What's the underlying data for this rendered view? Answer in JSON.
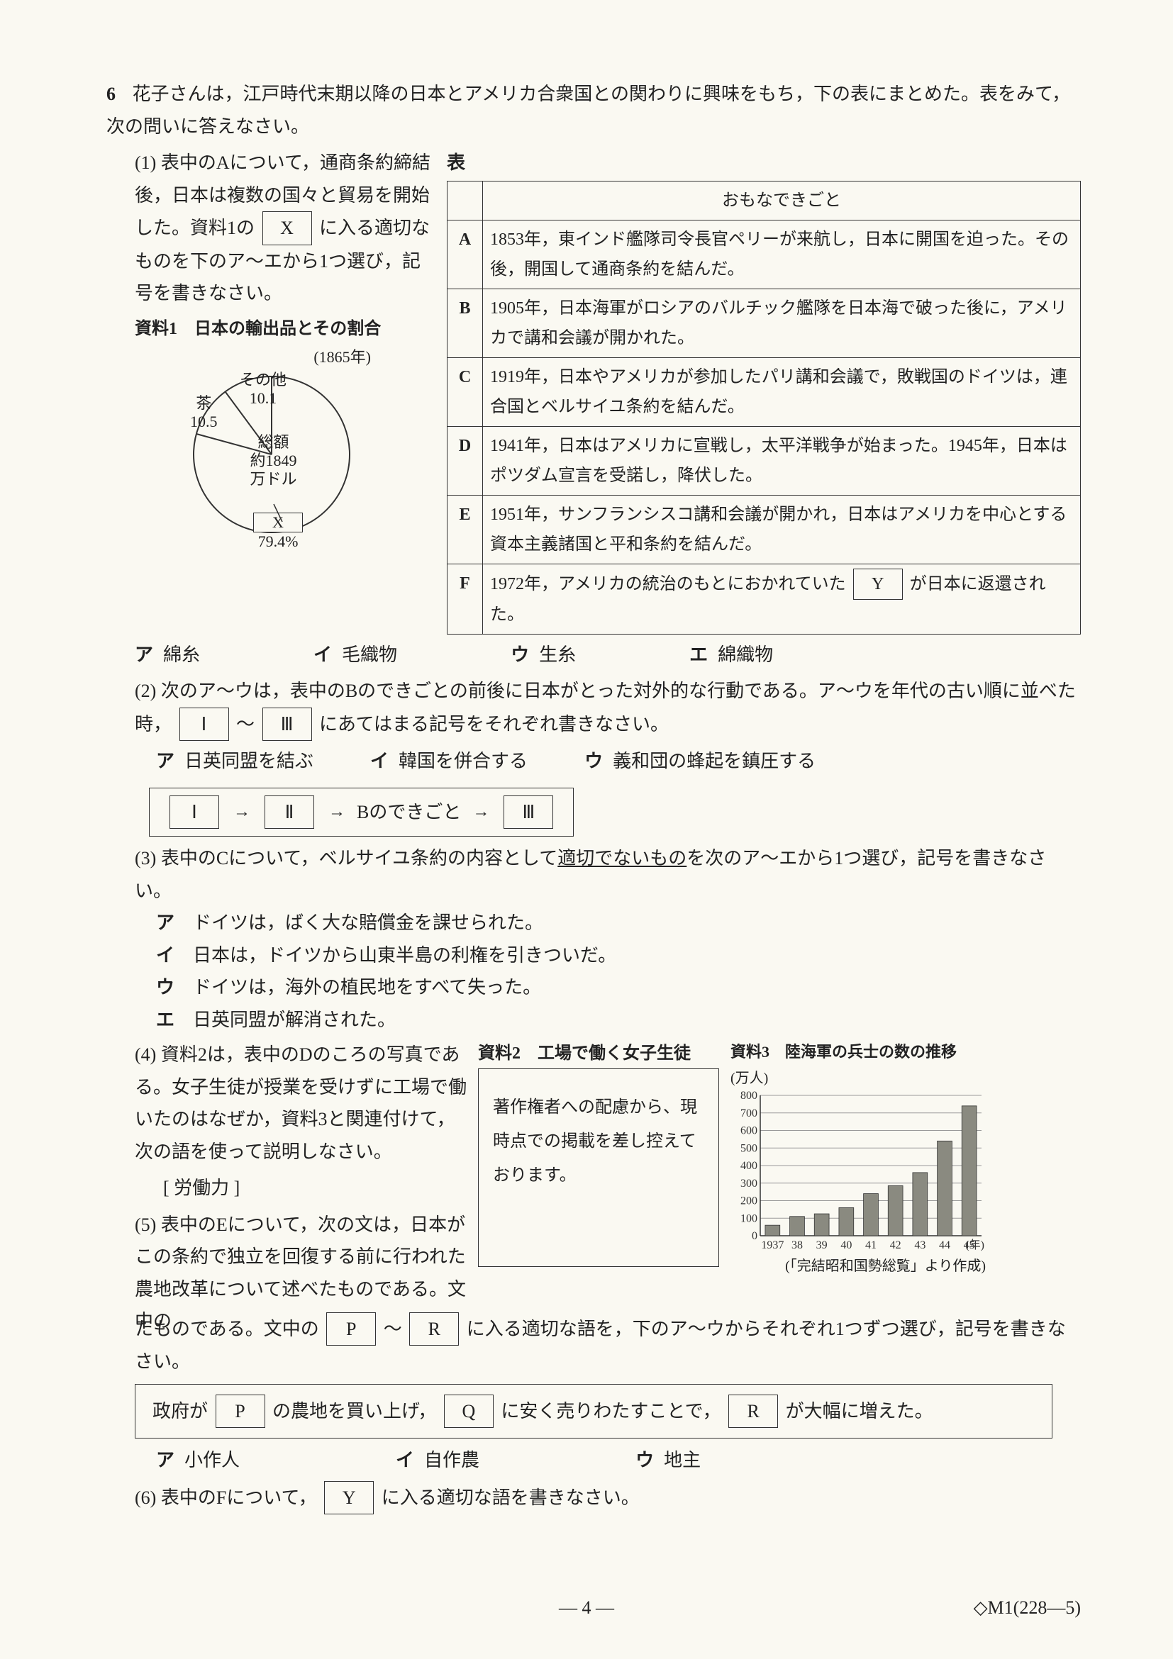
{
  "main": {
    "qnum": "6",
    "intro": "花子さんは，江戸時代末期以降の日本とアメリカ合衆国との関わりに興味をもち，下の表にまとめた。表をみて，次の問いに答えなさい。",
    "q1_label": "(1)",
    "q1_text1": "表中のAについて，通商条約締結後，日本は複数の国々と貿易を開始した。資料1の",
    "q1_blank": "X",
    "q1_text2": "に入る適切なものを下のア～エから1つ選び，記号を書きなさい。",
    "resource1_title": "資料1　日本の輸出品とその割合",
    "pie": {
      "type": "pie",
      "year": "(1865年)",
      "center_label": "総額\n約1849\n万ドル",
      "slices": [
        {
          "label": "その他",
          "value": 10.1,
          "color": "#faf9f2"
        },
        {
          "label": "茶",
          "value": 10.5,
          "color": "#faf9f2"
        },
        {
          "label": "X",
          "value": 79.4,
          "color": "#faf9f2",
          "is_blank": true
        }
      ],
      "x_pct_label": "79.4%",
      "tea_pct": "10.5",
      "other_pct": "10.1",
      "stroke": "#333",
      "background": "#faf9f2"
    },
    "table_title": "表",
    "table_header": "おもなできごと",
    "table_rows": [
      {
        "k": "A",
        "t": "1853年，東インド艦隊司令長官ペリーが来航し，日本に開国を迫った。その後，開国して通商条約を結んだ。"
      },
      {
        "k": "B",
        "t": "1905年，日本海軍がロシアのバルチック艦隊を日本海で破った後に，アメリカで講和会議が開かれた。"
      },
      {
        "k": "C",
        "t": "1919年，日本やアメリカが参加したパリ講和会議で，敗戦国のドイツは，連合国とベルサイユ条約を結んだ。"
      },
      {
        "k": "D",
        "t": "1941年，日本はアメリカに宣戦し，太平洋戦争が始まった。1945年，日本はポツダム宣言を受諾し，降伏した。"
      },
      {
        "k": "E",
        "t": "1951年，サンフランシスコ講和会議が開かれ，日本はアメリカを中心とする資本主義諸国と平和条約を結んだ。"
      },
      {
        "k": "F",
        "t_pre": "1972年，アメリカの統治のもとにおかれていた",
        "t_blank": "Y",
        "t_post": "が日本に返還された。"
      }
    ],
    "q1_opts": [
      {
        "k": "ア",
        "v": "綿糸"
      },
      {
        "k": "イ",
        "v": "毛織物"
      },
      {
        "k": "ウ",
        "v": "生糸"
      },
      {
        "k": "エ",
        "v": "綿織物"
      }
    ],
    "q2_label": "(2)",
    "q2_text": "次のア～ウは，表中のBのできごとの前後に日本がとった対外的な行動である。ア～ウを年代の古い順に並べた時，",
    "q2_blank_left": "Ⅰ",
    "q2_mid": "～",
    "q2_blank_right": "Ⅲ",
    "q2_text2": "にあてはまる記号をそれぞれ書きなさい。",
    "q2_opts": [
      {
        "k": "ア",
        "v": "日英同盟を結ぶ"
      },
      {
        "k": "イ",
        "v": "韓国を併合する"
      },
      {
        "k": "ウ",
        "v": "義和団の蜂起を鎮圧する"
      }
    ],
    "seq": {
      "b1": "Ⅰ",
      "b2": "Ⅱ",
      "mid": "Bのできごと",
      "b3": "Ⅲ"
    },
    "q3_label": "(3)",
    "q3_text": "表中のCについて，ベルサイユ条約の内容として適切でないものを次のア～エから1つ選び，記号を書きなさい。",
    "q3_underline": "適切でないもの",
    "q3_opts": [
      {
        "k": "ア",
        "v": "ドイツは，ばく大な賠償金を課せられた。"
      },
      {
        "k": "イ",
        "v": "日本は，ドイツから山東半島の利権を引きついだ。"
      },
      {
        "k": "ウ",
        "v": "ドイツは，海外の植民地をすべて失った。"
      },
      {
        "k": "エ",
        "v": "日英同盟が解消された。"
      }
    ],
    "q4_label": "(4)",
    "q4_text": "資料2は，表中のDのころの写真である。女子生徒が授業を受けずに工場で働いたのはなぜか，資料3と関連付けて，次の語を使って説明しなさい。",
    "q4_keyword_label": "[ 労働力 ]",
    "resource2_title": "資料2　工場で働く女子生徒",
    "resource2_box": "著作権者への配慮から、現時点での掲載を差し控えております。",
    "resource3_title": "資料3　陸海軍の兵士の数の推移",
    "barchart": {
      "type": "bar",
      "unit": "(万人)",
      "years": [
        "1937",
        "38",
        "39",
        "40",
        "41",
        "42",
        "43",
        "44",
        "45"
      ],
      "x_suffix": "(年)",
      "values": [
        60,
        110,
        125,
        160,
        240,
        285,
        360,
        540,
        740
      ],
      "ymax": 800,
      "ytick": 100,
      "bar_color": "#8a8a80",
      "grid_color": "#999",
      "bg": "#faf9f2",
      "source": "(「完結昭和国勢総覧」より作成)"
    },
    "q5_label": "(5)",
    "q5_text": "表中のEについて，次の文は，日本がこの条約で独立を回復する前に行われた農地改革について述べたものである。文中の",
    "q5_b1": "P",
    "q5_mid": "～",
    "q5_b2": "R",
    "q5_text2": "に入る適切な語を，下のア～ウからそれぞれ1つずつ選び，記号を書きなさい。",
    "q5_sentence": {
      "pre": "政府が",
      "p": "P",
      "mid1": "の農地を買い上げ，",
      "q": "Q",
      "mid2": "に安く売りわたすことで，",
      "r": "R",
      "post": "が大幅に増えた。"
    },
    "q5_opts": [
      {
        "k": "ア",
        "v": "小作人"
      },
      {
        "k": "イ",
        "v": "自作農"
      },
      {
        "k": "ウ",
        "v": "地主"
      }
    ],
    "q6_label": "(6)",
    "q6_text_pre": "表中のFについて，",
    "q6_blank": "Y",
    "q6_text_post": "に入る適切な語を書きなさい。"
  },
  "footer": {
    "page": "— 4 —",
    "code": "◇M1(228—5)"
  }
}
